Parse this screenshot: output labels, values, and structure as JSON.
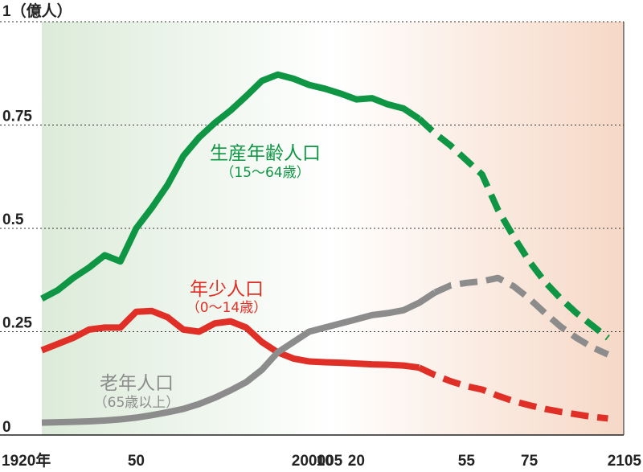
{
  "chart_data": {
    "type": "line",
    "ylabel": "1（億人）",
    "ylim": [
      0,
      1
    ],
    "x_range": [
      1920,
      2105
    ],
    "y_ticks": [
      {
        "value": 0,
        "label": "0"
      },
      {
        "value": 0.25,
        "label": "0.25"
      },
      {
        "value": 0.5,
        "label": "0.5"
      },
      {
        "value": 0.75,
        "label": "0.75"
      }
    ],
    "x_ticks": [
      {
        "value": 1920,
        "label": "1920年"
      },
      {
        "value": 1950,
        "label": "50"
      },
      {
        "value": 2000,
        "label": "2000"
      },
      {
        "value": 2005,
        "label": "05"
      },
      {
        "value": 2010,
        "label": "10"
      },
      {
        "value": 2020,
        "label": "20"
      },
      {
        "value": 2055,
        "label": "55"
      },
      {
        "value": 2075,
        "label": "75"
      },
      {
        "value": 2105,
        "label": "2105"
      }
    ],
    "projection_start": 2020,
    "background": {
      "left_color": "#dcebd9",
      "right_color": "#f6d8c6"
    },
    "series": [
      {
        "key": "working",
        "name": "生産年齢人口",
        "sub": "（15～64歳）",
        "color": "#0e9644",
        "actual": [
          [
            1920,
            0.33
          ],
          [
            1925,
            0.35
          ],
          [
            1930,
            0.38
          ],
          [
            1935,
            0.405
          ],
          [
            1940,
            0.435
          ],
          [
            1945,
            0.42
          ],
          [
            1950,
            0.5
          ],
          [
            1955,
            0.55
          ],
          [
            1960,
            0.605
          ],
          [
            1965,
            0.675
          ],
          [
            1970,
            0.72
          ],
          [
            1975,
            0.755
          ],
          [
            1980,
            0.785
          ],
          [
            1985,
            0.82
          ],
          [
            1990,
            0.857
          ],
          [
            1995,
            0.872
          ],
          [
            2000,
            0.862
          ],
          [
            2005,
            0.847
          ],
          [
            2010,
            0.838
          ],
          [
            2015,
            0.826
          ],
          [
            2020,
            0.812
          ],
          [
            2025,
            0.815
          ],
          [
            2030,
            0.8
          ],
          [
            2035,
            0.79
          ],
          [
            2040,
            0.765
          ]
        ],
        "projected": [
          [
            2040,
            0.765
          ],
          [
            2045,
            0.73
          ],
          [
            2050,
            0.7
          ],
          [
            2055,
            0.665
          ],
          [
            2060,
            0.63
          ],
          [
            2065,
            0.545
          ],
          [
            2070,
            0.48
          ],
          [
            2075,
            0.42
          ],
          [
            2080,
            0.37
          ],
          [
            2085,
            0.33
          ],
          [
            2090,
            0.295
          ],
          [
            2095,
            0.265
          ],
          [
            2100,
            0.235
          ]
        ]
      },
      {
        "key": "youth",
        "name": "年少人口",
        "sub": "（0～14歳）",
        "color": "#e02f26",
        "actual": [
          [
            1920,
            0.205
          ],
          [
            1925,
            0.22
          ],
          [
            1930,
            0.235
          ],
          [
            1935,
            0.255
          ],
          [
            1940,
            0.26
          ],
          [
            1945,
            0.26
          ],
          [
            1950,
            0.298
          ],
          [
            1955,
            0.3
          ],
          [
            1960,
            0.285
          ],
          [
            1965,
            0.255
          ],
          [
            1970,
            0.25
          ],
          [
            1975,
            0.27
          ],
          [
            1980,
            0.275
          ],
          [
            1985,
            0.26
          ],
          [
            1990,
            0.225
          ],
          [
            1995,
            0.2
          ],
          [
            2000,
            0.185
          ],
          [
            2005,
            0.178
          ],
          [
            2010,
            0.176
          ],
          [
            2015,
            0.175
          ],
          [
            2020,
            0.173
          ],
          [
            2025,
            0.171
          ],
          [
            2030,
            0.17
          ],
          [
            2035,
            0.168
          ],
          [
            2040,
            0.163
          ]
        ],
        "projected": [
          [
            2040,
            0.163
          ],
          [
            2045,
            0.145
          ],
          [
            2050,
            0.13
          ],
          [
            2055,
            0.118
          ],
          [
            2060,
            0.11
          ],
          [
            2065,
            0.095
          ],
          [
            2070,
            0.082
          ],
          [
            2075,
            0.072
          ],
          [
            2080,
            0.063
          ],
          [
            2085,
            0.056
          ],
          [
            2090,
            0.05
          ],
          [
            2095,
            0.044
          ],
          [
            2100,
            0.04
          ]
        ]
      },
      {
        "key": "elderly",
        "name": "老年人口",
        "sub": "（65歳以上）",
        "color": "#8c8c8c",
        "actual": [
          [
            1920,
            0.03
          ],
          [
            1925,
            0.031
          ],
          [
            1930,
            0.032
          ],
          [
            1935,
            0.033
          ],
          [
            1940,
            0.035
          ],
          [
            1945,
            0.038
          ],
          [
            1950,
            0.042
          ],
          [
            1955,
            0.048
          ],
          [
            1960,
            0.055
          ],
          [
            1965,
            0.063
          ],
          [
            1970,
            0.075
          ],
          [
            1975,
            0.09
          ],
          [
            1980,
            0.108
          ],
          [
            1985,
            0.128
          ],
          [
            1990,
            0.158
          ],
          [
            1995,
            0.2
          ],
          [
            2000,
            0.225
          ],
          [
            2005,
            0.25
          ],
          [
            2010,
            0.26
          ],
          [
            2015,
            0.27
          ],
          [
            2020,
            0.28
          ],
          [
            2025,
            0.29
          ],
          [
            2030,
            0.295
          ],
          [
            2035,
            0.302
          ],
          [
            2040,
            0.32
          ],
          [
            2045,
            0.345
          ]
        ],
        "projected": [
          [
            2045,
            0.345
          ],
          [
            2050,
            0.362
          ],
          [
            2055,
            0.368
          ],
          [
            2060,
            0.372
          ],
          [
            2065,
            0.38
          ],
          [
            2070,
            0.36
          ],
          [
            2075,
            0.33
          ],
          [
            2080,
            0.295
          ],
          [
            2085,
            0.262
          ],
          [
            2090,
            0.235
          ],
          [
            2095,
            0.212
          ],
          [
            2100,
            0.195
          ]
        ]
      }
    ]
  }
}
